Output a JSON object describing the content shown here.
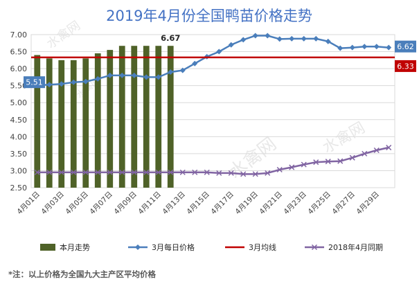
{
  "chart_data": {
    "type": "bar",
    "title": "2019年4月份全国鸭苗价格走势",
    "ylim": [
      2.5,
      7.0
    ],
    "ytick_step": 0.5,
    "yticks": [
      "2.50",
      "3.00",
      "3.50",
      "4.00",
      "4.50",
      "5.00",
      "5.50",
      "6.00",
      "6.50",
      "7.00"
    ],
    "grid": true,
    "legend_position": "bottom",
    "x": [
      "4月01日",
      "4月02日",
      "4月03日",
      "4月04日",
      "4月05日",
      "4月06日",
      "4月07日",
      "4月08日",
      "4月09日",
      "4月10日",
      "4月11日",
      "4月12日",
      "4月13日",
      "4月14日",
      "4月15日",
      "4月16日",
      "4月17日",
      "4月18日",
      "4月19日",
      "4月20日",
      "4月21日",
      "4月22日",
      "4月23日",
      "4月24日",
      "4月25日",
      "4月26日",
      "4月27日",
      "4月28日",
      "4月29日",
      "4月30日"
    ],
    "x_tick_labels": [
      "4月01日",
      "4月03日",
      "4月05日",
      "4月07日",
      "4月09日",
      "4月11日",
      "4月13日",
      "4月15日",
      "4月17日",
      "4月19日",
      "4月21日",
      "4月23日",
      "4月25日",
      "4月27日",
      "4月29日"
    ],
    "series": [
      {
        "name": "本月走势",
        "type": "bar",
        "color": "#4f6228",
        "values": [
          6.4,
          6.3,
          6.25,
          6.25,
          6.3,
          6.45,
          6.55,
          6.67,
          6.67,
          6.67,
          6.67,
          6.67,
          null,
          null,
          null,
          null,
          null,
          null,
          null,
          null,
          null,
          null,
          null,
          null,
          null,
          null,
          null,
          null,
          null,
          null
        ]
      },
      {
        "name": "3月每日价格",
        "type": "line",
        "color": "#4a7ebb",
        "marker": "diamond",
        "values": [
          5.51,
          5.53,
          5.55,
          5.6,
          5.62,
          5.7,
          5.8,
          5.8,
          5.8,
          5.75,
          5.75,
          5.9,
          5.95,
          6.15,
          6.35,
          6.5,
          6.7,
          6.85,
          6.97,
          6.97,
          6.87,
          6.88,
          6.88,
          6.88,
          6.8,
          6.6,
          6.62,
          6.65,
          6.65,
          6.62
        ]
      },
      {
        "name": "3月均线",
        "type": "line",
        "color": "#c00000",
        "values": [
          6.33,
          6.33,
          6.33,
          6.33,
          6.33,
          6.33,
          6.33,
          6.33,
          6.33,
          6.33,
          6.33,
          6.33,
          6.33,
          6.33,
          6.33,
          6.33,
          6.33,
          6.33,
          6.33,
          6.33,
          6.33,
          6.33,
          6.33,
          6.33,
          6.33,
          6.33,
          6.33,
          6.33,
          6.33,
          6.33
        ]
      },
      {
        "name": "2018年4月同期",
        "type": "line",
        "color": "#8064a2",
        "marker": "x",
        "values": [
          2.95,
          2.95,
          2.95,
          2.95,
          2.95,
          2.95,
          2.95,
          2.95,
          2.95,
          2.95,
          2.95,
          2.95,
          2.95,
          2.95,
          2.95,
          2.93,
          2.93,
          2.9,
          2.9,
          2.93,
          3.03,
          3.1,
          3.18,
          3.25,
          3.27,
          3.28,
          3.38,
          3.5,
          3.6,
          3.68
        ]
      }
    ],
    "annotations": [
      {
        "text": "5.51",
        "series": "3月每日价格",
        "index": 0,
        "style": "box",
        "color": "#4a7ebb"
      },
      {
        "text": "6.67",
        "series": "本月走势",
        "index": 11,
        "style": "bold"
      },
      {
        "text": "6.62",
        "series": "3月每日价格",
        "index": 29,
        "style": "box",
        "color": "#4a7ebb"
      },
      {
        "text": "6.33",
        "series": "3月均线",
        "index": 29,
        "style": "box",
        "color": "#c00000"
      }
    ],
    "watermark": "水禽网"
  },
  "footnote": "*注：以上价格为全国九大主产区平均价格"
}
